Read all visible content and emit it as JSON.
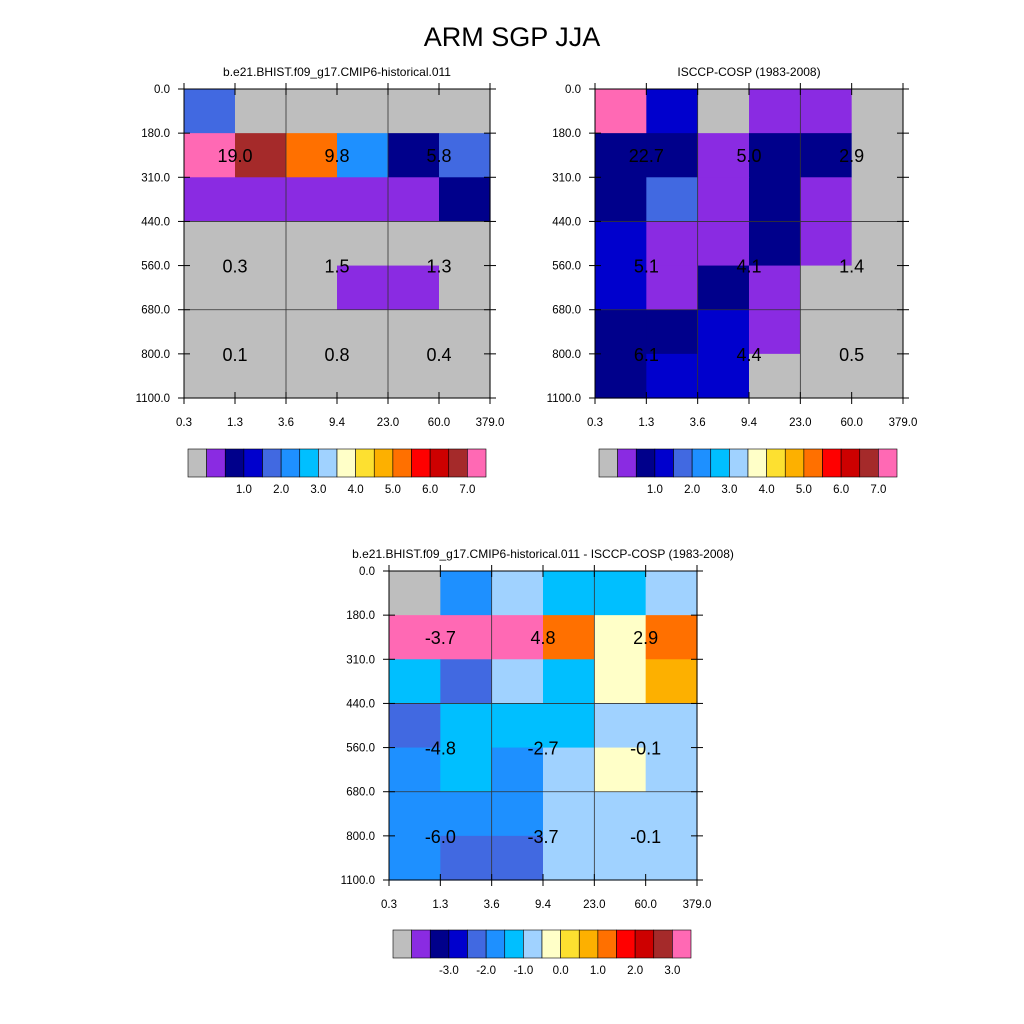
{
  "page_title": "ARM SGP JJA",
  "chart_data": [
    {
      "type": "heatmap",
      "title": "b.e21.BHIST.f09_g17.CMIP6-historical.011",
      "x_ticks": [
        "0.3",
        "1.3",
        "3.6",
        "9.4",
        "23.0",
        "60.0",
        "379.0"
      ],
      "y_ticks": [
        "0.0",
        "180.0",
        "310.0",
        "440.0",
        "560.0",
        "680.0",
        "800.0",
        "1100.0"
      ],
      "cell_colors": [
        [
          "#4169e1",
          "#bebebe",
          "#bebebe",
          "#bebebe",
          "#bebebe",
          "#bebebe"
        ],
        [
          "#ff69b4",
          "#a52a2a",
          "#ff7000",
          "#1e90ff",
          "#00008b",
          "#4169e1"
        ],
        [
          "#8a2be2",
          "#8a2be2",
          "#8a2be2",
          "#8a2be2",
          "#8a2be2",
          "#00008b"
        ],
        [
          "#bebebe",
          "#bebebe",
          "#bebebe",
          "#bebebe",
          "#bebebe",
          "#bebebe"
        ],
        [
          "#bebebe",
          "#bebebe",
          "#bebebe",
          "#8a2be2",
          "#8a2be2",
          "#bebebe"
        ],
        [
          "#bebebe",
          "#bebebe",
          "#bebebe",
          "#bebebe",
          "#bebebe",
          "#bebebe"
        ],
        [
          "#bebebe",
          "#bebebe",
          "#bebebe",
          "#bebebe",
          "#bebebe",
          "#bebebe"
        ]
      ],
      "block_values": [
        [
          "19.0",
          "9.8",
          "5.8"
        ],
        [
          "0.3",
          "1.5",
          "1.3"
        ],
        [
          "0.1",
          "0.8",
          "0.4"
        ]
      ],
      "colorbar": {
        "colors": [
          "#bebebe",
          "#8a2be2",
          "#00008b",
          "#0000cd",
          "#4169e1",
          "#1e90ff",
          "#00bfff",
          "#a0d2ff",
          "#ffffc8",
          "#fde030",
          "#fdb000",
          "#ff7000",
          "#ff0000",
          "#cd0000",
          "#a52a2a",
          "#ff69b4"
        ],
        "labels": [
          "1.0",
          "2.0",
          "3.0",
          "4.0",
          "5.0",
          "6.0",
          "7.0"
        ]
      }
    },
    {
      "type": "heatmap",
      "title": "ISCCP-COSP (1983-2008)",
      "x_ticks": [
        "0.3",
        "1.3",
        "3.6",
        "9.4",
        "23.0",
        "60.0",
        "379.0"
      ],
      "y_ticks": [
        "0.0",
        "180.0",
        "310.0",
        "440.0",
        "560.0",
        "680.0",
        "800.0",
        "1100.0"
      ],
      "cell_colors": [
        [
          "#ff69b4",
          "#0000cd",
          "#bebebe",
          "#8a2be2",
          "#8a2be2",
          "#bebebe"
        ],
        [
          "#00008b",
          "#00008b",
          "#8a2be2",
          "#00008b",
          "#00008b",
          "#bebebe"
        ],
        [
          "#00008b",
          "#4169e1",
          "#8a2be2",
          "#00008b",
          "#8a2be2",
          "#bebebe"
        ],
        [
          "#0000cd",
          "#8a2be2",
          "#8a2be2",
          "#00008b",
          "#8a2be2",
          "#bebebe"
        ],
        [
          "#0000cd",
          "#8a2be2",
          "#00008b",
          "#8a2be2",
          "#bebebe",
          "#bebebe"
        ],
        [
          "#00008b",
          "#00008b",
          "#0000cd",
          "#8a2be2",
          "#bebebe",
          "#bebebe"
        ],
        [
          "#00008b",
          "#0000cd",
          "#0000cd",
          "#bebebe",
          "#bebebe",
          "#bebebe"
        ]
      ],
      "block_values": [
        [
          "22.7",
          "5.0",
          "2.9"
        ],
        [
          "5.1",
          "4.1",
          "1.4"
        ],
        [
          "6.1",
          "4.4",
          "0.5"
        ]
      ],
      "colorbar": {
        "colors": [
          "#bebebe",
          "#8a2be2",
          "#00008b",
          "#0000cd",
          "#4169e1",
          "#1e90ff",
          "#00bfff",
          "#a0d2ff",
          "#ffffc8",
          "#fde030",
          "#fdb000",
          "#ff7000",
          "#ff0000",
          "#cd0000",
          "#a52a2a",
          "#ff69b4"
        ],
        "labels": [
          "1.0",
          "2.0",
          "3.0",
          "4.0",
          "5.0",
          "6.0",
          "7.0"
        ]
      }
    },
    {
      "type": "heatmap",
      "title": "b.e21.BHIST.f09_g17.CMIP6-historical.011 - ISCCP-COSP (1983-2008)",
      "x_ticks": [
        "0.3",
        "1.3",
        "3.6",
        "9.4",
        "23.0",
        "60.0",
        "379.0"
      ],
      "y_ticks": [
        "0.0",
        "180.0",
        "310.0",
        "440.0",
        "560.0",
        "680.0",
        "800.0",
        "1100.0"
      ],
      "cell_colors": [
        [
          "#bebebe",
          "#1e90ff",
          "#a0d2ff",
          "#00bfff",
          "#00bfff",
          "#a0d2ff"
        ],
        [
          "#ff69b4",
          "#ff69b4",
          "#ff69b4",
          "#ff7000",
          "#ffffc8",
          "#ff7000"
        ],
        [
          "#00bfff",
          "#4169e1",
          "#a0d2ff",
          "#00bfff",
          "#ffffc8",
          "#fdb000"
        ],
        [
          "#4169e1",
          "#00bfff",
          "#00bfff",
          "#00bfff",
          "#a0d2ff",
          "#a0d2ff"
        ],
        [
          "#1e90ff",
          "#00bfff",
          "#1e90ff",
          "#a0d2ff",
          "#ffffc8",
          "#a0d2ff"
        ],
        [
          "#1e90ff",
          "#1e90ff",
          "#1e90ff",
          "#a0d2ff",
          "#a0d2ff",
          "#a0d2ff"
        ],
        [
          "#1e90ff",
          "#4169e1",
          "#4169e1",
          "#a0d2ff",
          "#a0d2ff",
          "#a0d2ff"
        ]
      ],
      "block_values": [
        [
          "-3.7",
          "4.8",
          "2.9"
        ],
        [
          "-4.8",
          "-2.7",
          "-0.1"
        ],
        [
          "-6.0",
          "-3.7",
          "-0.1"
        ]
      ],
      "colorbar": {
        "colors": [
          "#bebebe",
          "#8a2be2",
          "#00008b",
          "#0000cd",
          "#4169e1",
          "#1e90ff",
          "#00bfff",
          "#a0d2ff",
          "#ffffc8",
          "#fde030",
          "#fdb000",
          "#ff7000",
          "#ff0000",
          "#cd0000",
          "#a52a2a",
          "#ff69b4"
        ],
        "labels": [
          "-3.0",
          "-2.0",
          "-1.0",
          "0.0",
          "1.0",
          "2.0",
          "3.0"
        ]
      }
    }
  ]
}
